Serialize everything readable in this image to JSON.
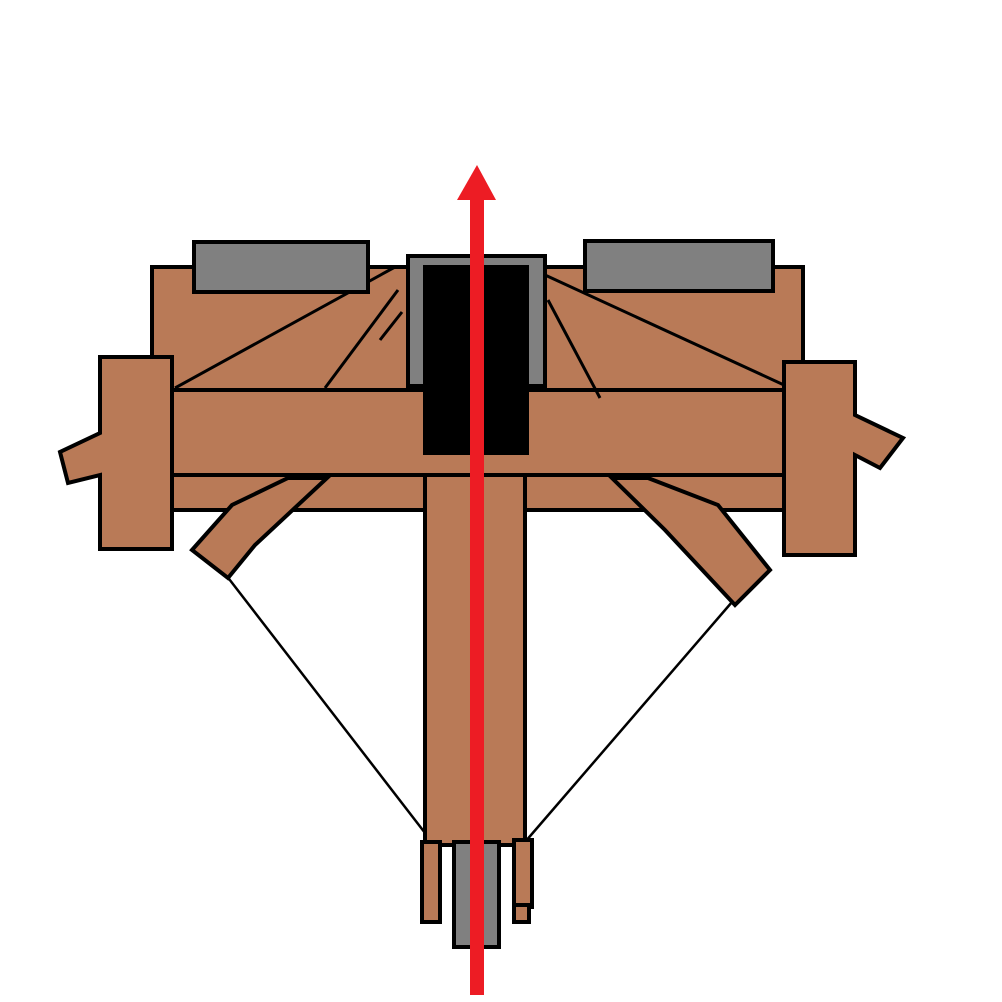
{
  "diagram": {
    "colors": {
      "wood": "#b97a57",
      "metal": "#808080",
      "slot": "#000000",
      "arrow": "#ed1c24",
      "outline": "#000000",
      "background": "#ffffff"
    },
    "parts": [
      "frame-body",
      "side-arm-left",
      "side-arm-right",
      "crossbeam",
      "center-shaft",
      "metal-block-left",
      "metal-block-right",
      "center-housing",
      "center-slot",
      "bottom-wheel",
      "direction-arrow"
    ]
  }
}
